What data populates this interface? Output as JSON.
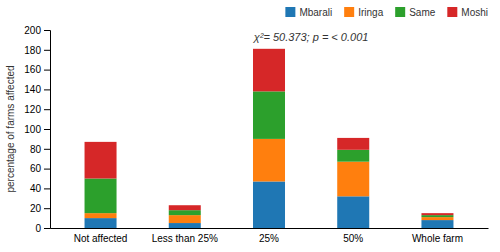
{
  "chart_data": {
    "type": "bar",
    "stacked": true,
    "categories": [
      "Not affected",
      "Less than 25%",
      "25%",
      "50%",
      "Whole farm"
    ],
    "series": [
      {
        "name": "Mbarali",
        "values": [
          10,
          5,
          47,
          32,
          8
        ]
      },
      {
        "name": "Iringa",
        "values": [
          5,
          8,
          43,
          35,
          3
        ]
      },
      {
        "name": "Same",
        "values": [
          35,
          5,
          48,
          12,
          2
        ]
      },
      {
        "name": "Moshi",
        "values": [
          37,
          5,
          43,
          12,
          2
        ]
      }
    ],
    "ylabel": "percentage of farms affected",
    "ylim": [
      0,
      200
    ],
    "yticks": [
      0,
      20,
      40,
      60,
      80,
      100,
      120,
      140,
      160,
      180,
      200
    ],
    "annotation": "χ²= 50.373; p = < 0.001",
    "legend": "upper right",
    "grid": false
  }
}
